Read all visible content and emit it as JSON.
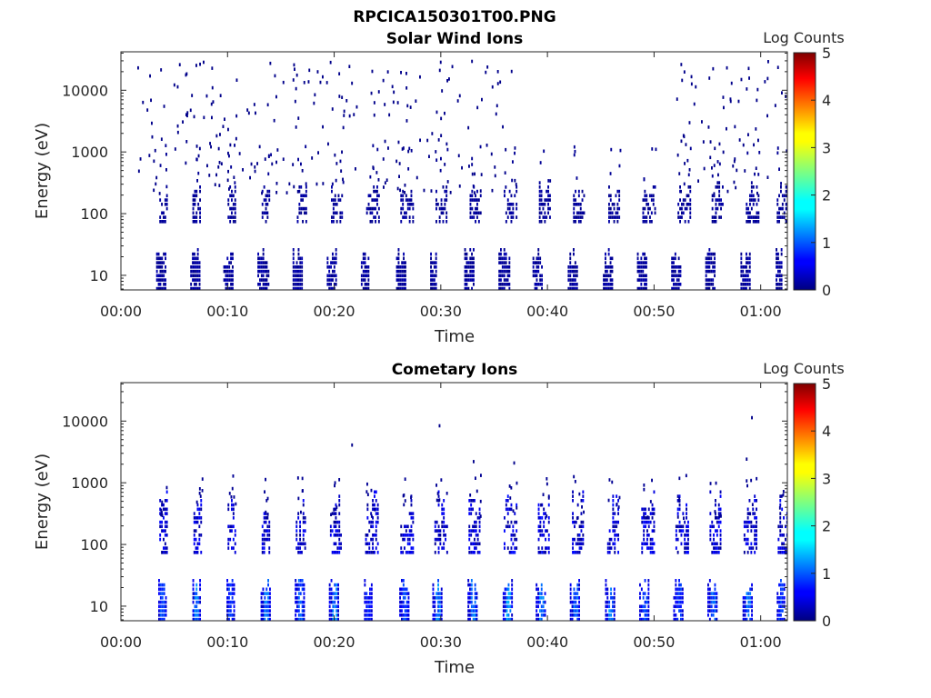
{
  "figure_title": "RPCICA150301T00.PNG",
  "chart_data": [
    {
      "type": "heatmap",
      "title": "Solar Wind Ions",
      "xlabel": "Time",
      "ylabel": "Energy (eV)",
      "x_unit": "minutes",
      "xlim": [
        0,
        62.5
      ],
      "xticks": [
        0,
        10,
        20,
        30,
        40,
        50,
        60
      ],
      "xtick_labels": [
        "00:00",
        "00:10",
        "00:20",
        "00:30",
        "00:40",
        "00:50",
        "01:00"
      ],
      "ylim": [
        5.8,
        42000
      ],
      "yscale": "log",
      "yticks": [
        10,
        100,
        1000,
        10000
      ],
      "ytick_labels": [
        "10",
        "100",
        "1000",
        "10000"
      ],
      "colorbar": {
        "label": "Log Counts",
        "range": [
          0,
          5
        ],
        "ticks": [
          "0",
          "1",
          "2",
          "3",
          "4",
          "5"
        ],
        "colormap": "jet"
      },
      "low_energy_bursts": [
        {
          "t": 3.3,
          "w": 0.9
        },
        {
          "t": 6.5,
          "w": 0.9
        },
        {
          "t": 9.6,
          "w": 0.9
        },
        {
          "t": 12.8,
          "w": 1.0
        },
        {
          "t": 16.1,
          "w": 0.9
        },
        {
          "t": 19.3,
          "w": 0.9
        },
        {
          "t": 22.5,
          "w": 0.8
        },
        {
          "t": 25.8,
          "w": 0.9
        },
        {
          "t": 29.0,
          "w": 0.6
        },
        {
          "t": 32.2,
          "w": 0.9
        },
        {
          "t": 35.4,
          "w": 1.0
        },
        {
          "t": 38.6,
          "w": 0.9
        },
        {
          "t": 41.9,
          "w": 0.9
        },
        {
          "t": 45.2,
          "w": 0.9
        },
        {
          "t": 48.4,
          "w": 0.8
        },
        {
          "t": 51.6,
          "w": 0.9
        },
        {
          "t": 54.8,
          "w": 0.9
        },
        {
          "t": 58.1,
          "w": 0.8
        },
        {
          "t": 61.4,
          "w": 0.6
        }
      ],
      "mid_energy_bursts": [
        {
          "t": 3.6,
          "w": 0.7
        },
        {
          "t": 6.7,
          "w": 0.8
        },
        {
          "t": 10.0,
          "w": 0.7
        },
        {
          "t": 13.2,
          "w": 0.8
        },
        {
          "t": 16.5,
          "w": 0.9
        },
        {
          "t": 19.7,
          "w": 1.1
        },
        {
          "t": 23.0,
          "w": 1.2
        },
        {
          "t": 26.2,
          "w": 1.2
        },
        {
          "t": 29.5,
          "w": 1.1
        },
        {
          "t": 32.7,
          "w": 1.1
        },
        {
          "t": 35.9,
          "w": 1.2
        },
        {
          "t": 39.2,
          "w": 1.1
        },
        {
          "t": 42.4,
          "w": 1.1
        },
        {
          "t": 45.7,
          "w": 1.1
        },
        {
          "t": 48.9,
          "w": 1.2
        },
        {
          "t": 52.2,
          "w": 1.2
        },
        {
          "t": 55.4,
          "w": 1.1
        },
        {
          "t": 58.6,
          "w": 1.2
        },
        {
          "t": 61.5,
          "w": 1.0
        }
      ],
      "high_energy_scatter_intervals": [
        [
          1.5,
          37
        ],
        [
          52,
          62.5
        ]
      ]
    },
    {
      "type": "heatmap",
      "title": "Cometary Ions",
      "xlabel": "Time",
      "ylabel": "Energy (eV)",
      "x_unit": "minutes",
      "xlim": [
        0,
        62.5
      ],
      "xticks": [
        0,
        10,
        20,
        30,
        40,
        50,
        60
      ],
      "xtick_labels": [
        "00:00",
        "00:10",
        "00:20",
        "00:30",
        "00:40",
        "00:50",
        "01:00"
      ],
      "ylim": [
        5.8,
        42000
      ],
      "yscale": "log",
      "yticks": [
        10,
        100,
        1000,
        10000
      ],
      "ytick_labels": [
        "10",
        "100",
        "1000",
        "10000"
      ],
      "colorbar": {
        "label": "Log Counts",
        "range": [
          0,
          5
        ],
        "ticks": [
          "0",
          "1",
          "2",
          "3",
          "4",
          "5"
        ],
        "colormap": "jet"
      },
      "low_energy_bursts": [
        {
          "t": 3.5,
          "w": 0.8,
          "peak_log_counts": 1.0
        },
        {
          "t": 6.7,
          "w": 0.8,
          "peak_log_counts": 1.3
        },
        {
          "t": 9.9,
          "w": 0.8,
          "peak_log_counts": 0.9
        },
        {
          "t": 13.1,
          "w": 0.9,
          "peak_log_counts": 1.2
        },
        {
          "t": 16.3,
          "w": 0.9,
          "peak_log_counts": 1.1
        },
        {
          "t": 19.5,
          "w": 0.9,
          "peak_log_counts": 1.3
        },
        {
          "t": 22.8,
          "w": 0.8,
          "peak_log_counts": 0.8
        },
        {
          "t": 26.1,
          "w": 0.9,
          "peak_log_counts": 1.0
        },
        {
          "t": 29.2,
          "w": 0.9,
          "peak_log_counts": 1.3
        },
        {
          "t": 32.5,
          "w": 0.9,
          "peak_log_counts": 1.2
        },
        {
          "t": 35.8,
          "w": 0.9,
          "peak_log_counts": 1.4
        },
        {
          "t": 38.9,
          "w": 0.9,
          "peak_log_counts": 1.3
        },
        {
          "t": 42.1,
          "w": 0.9,
          "peak_log_counts": 1.2
        },
        {
          "t": 45.4,
          "w": 0.9,
          "peak_log_counts": 1.3
        },
        {
          "t": 48.6,
          "w": 0.9,
          "peak_log_counts": 1.0
        },
        {
          "t": 51.8,
          "w": 0.9,
          "peak_log_counts": 0.9
        },
        {
          "t": 55.0,
          "w": 0.9,
          "peak_log_counts": 1.1
        },
        {
          "t": 58.3,
          "w": 0.9,
          "peak_log_counts": 1.2
        },
        {
          "t": 61.5,
          "w": 0.7,
          "peak_log_counts": 0.9
        }
      ],
      "mid_energy_bursts": [
        {
          "t": 3.6,
          "w": 0.7
        },
        {
          "t": 6.8,
          "w": 0.8
        },
        {
          "t": 10.0,
          "w": 0.7
        },
        {
          "t": 13.2,
          "w": 0.8
        },
        {
          "t": 16.4,
          "w": 0.9
        },
        {
          "t": 19.6,
          "w": 1.1
        },
        {
          "t": 22.9,
          "w": 1.2
        },
        {
          "t": 26.2,
          "w": 1.2
        },
        {
          "t": 29.4,
          "w": 1.2
        },
        {
          "t": 32.6,
          "w": 1.1
        },
        {
          "t": 35.9,
          "w": 1.2
        },
        {
          "t": 39.1,
          "w": 1.1
        },
        {
          "t": 42.3,
          "w": 1.1
        },
        {
          "t": 45.6,
          "w": 1.1
        },
        {
          "t": 48.8,
          "w": 1.2
        },
        {
          "t": 52.0,
          "w": 1.2
        },
        {
          "t": 55.2,
          "w": 1.1
        },
        {
          "t": 58.4,
          "w": 1.2
        },
        {
          "t": 61.6,
          "w": 1.0
        }
      ],
      "isolated_high_energy_points": [
        {
          "t": 21.6,
          "e": 3900
        },
        {
          "t": 29.8,
          "e": 8000
        },
        {
          "t": 33.0,
          "e": 2100
        },
        {
          "t": 36.8,
          "e": 2000
        },
        {
          "t": 59.1,
          "e": 10800
        },
        {
          "t": 58.6,
          "e": 2300
        }
      ]
    }
  ]
}
